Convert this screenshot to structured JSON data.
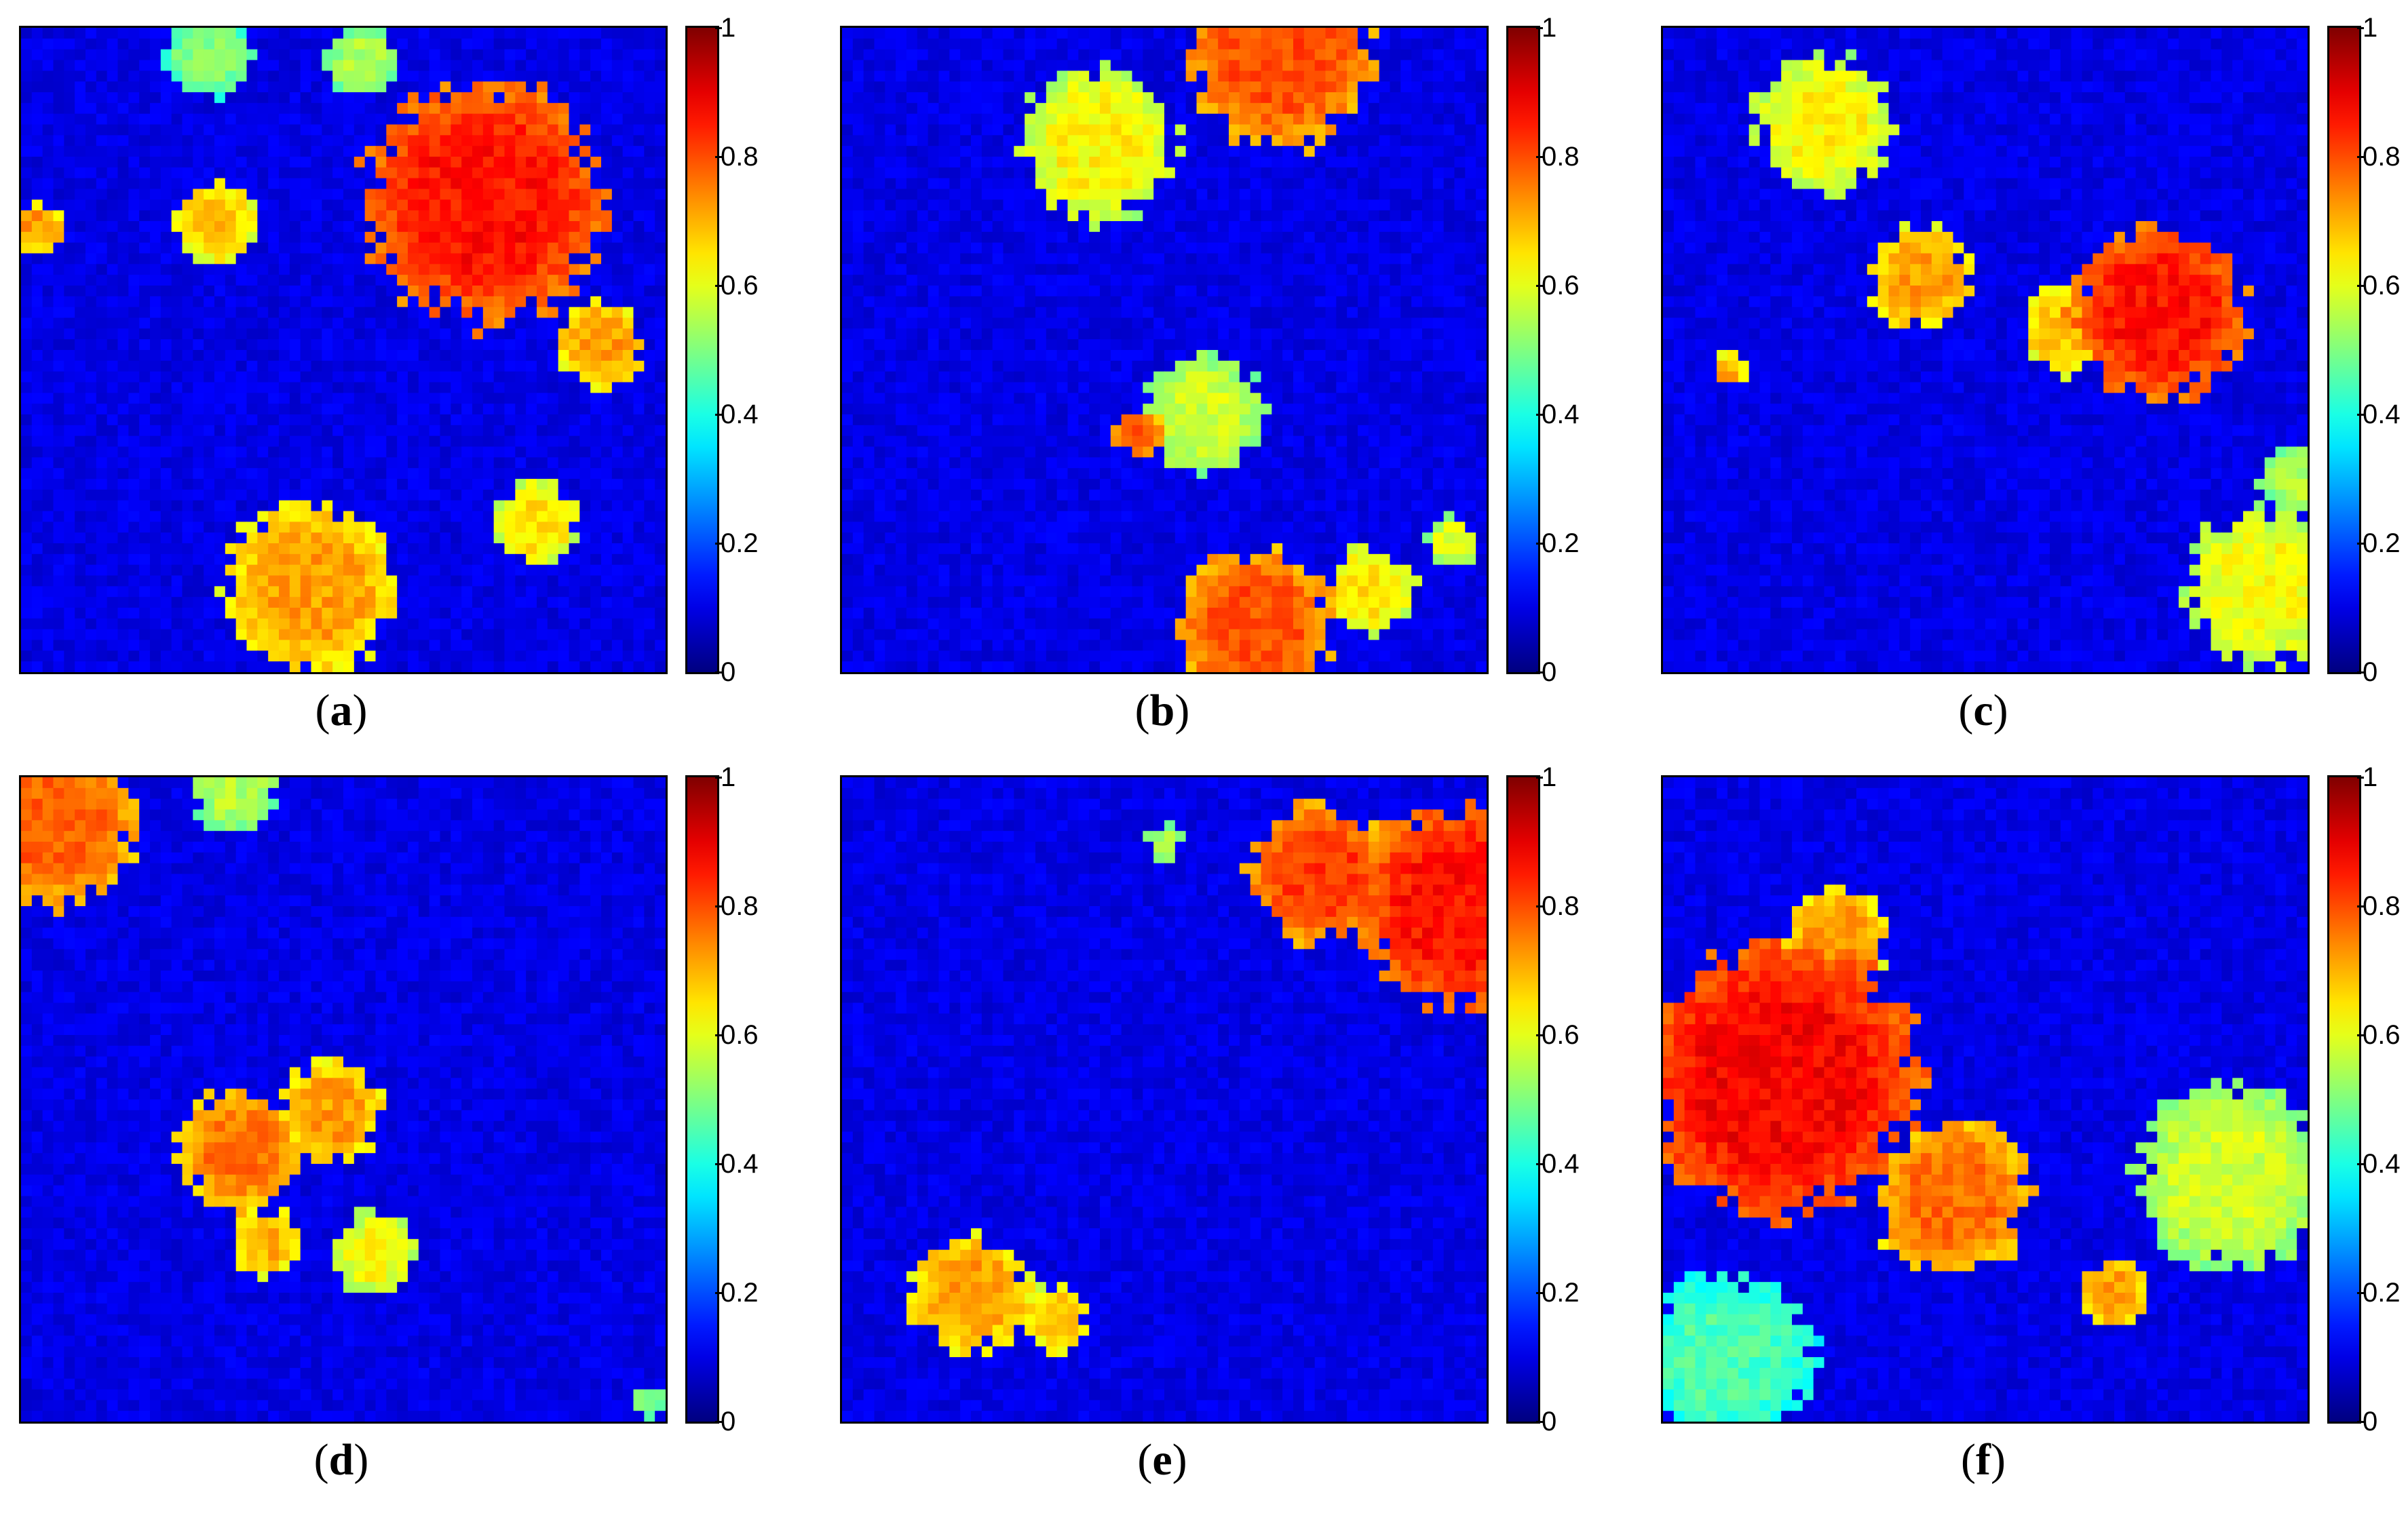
{
  "figure": {
    "colormap": "jet",
    "colorbar_ticks": [
      "0",
      "0.2",
      "0.4",
      "0.6",
      "0.8",
      "1"
    ],
    "panels": [
      {
        "label_open": "(",
        "label_letter": "a",
        "label_close": ")",
        "caption": "(a)"
      },
      {
        "label_open": "(",
        "label_letter": "b",
        "label_close": ")",
        "caption": "(b)"
      },
      {
        "label_open": "(",
        "label_letter": "c",
        "label_close": ")",
        "caption": "(c)"
      },
      {
        "label_open": "(",
        "label_letter": "d",
        "label_close": ")",
        "caption": "(d)"
      },
      {
        "label_open": "(",
        "label_letter": "e",
        "label_close": ")",
        "caption": "(e)"
      },
      {
        "label_open": "(",
        "label_letter": "f",
        "label_close": ")",
        "caption": "(f)"
      }
    ]
  },
  "chart_data": [
    {
      "type": "heatmap",
      "title": "(a)",
      "grid_size": [
        60,
        60
      ],
      "value_range": [
        0,
        1
      ],
      "colorbar_ticks": [
        0,
        0.2,
        0.4,
        0.6,
        0.8,
        1
      ],
      "background_value": 0.1,
      "blobs": [
        [
          0.72,
          0.27,
          0.14,
          0.86
        ],
        [
          0.45,
          0.87,
          0.1,
          0.72
        ],
        [
          0.3,
          0.3,
          0.05,
          0.68
        ],
        [
          0.9,
          0.49,
          0.05,
          0.72
        ],
        [
          0.8,
          0.77,
          0.05,
          0.65
        ],
        [
          0.03,
          0.31,
          0.03,
          0.72
        ],
        [
          0.29,
          0.04,
          0.05,
          0.5
        ],
        [
          0.53,
          0.05,
          0.04,
          0.55
        ]
      ]
    },
    {
      "type": "heatmap",
      "title": "(b)",
      "grid_size": [
        60,
        60
      ],
      "value_range": [
        0,
        1
      ],
      "colorbar_ticks": [
        0,
        0.2,
        0.4,
        0.6,
        0.8,
        1
      ],
      "background_value": 0.1,
      "blobs": [
        [
          0.68,
          0.04,
          0.11,
          0.8
        ],
        [
          0.4,
          0.18,
          0.09,
          0.63
        ],
        [
          0.56,
          0.6,
          0.07,
          0.58
        ],
        [
          0.64,
          0.93,
          0.09,
          0.8
        ],
        [
          0.46,
          0.63,
          0.03,
          0.78
        ],
        [
          0.82,
          0.87,
          0.05,
          0.65
        ],
        [
          0.95,
          0.8,
          0.03,
          0.6
        ]
      ]
    },
    {
      "type": "heatmap",
      "title": "(c)",
      "grid_size": [
        60,
        60
      ],
      "value_range": [
        0,
        1
      ],
      "colorbar_ticks": [
        0,
        0.2,
        0.4,
        0.6,
        0.8,
        1
      ],
      "background_value": 0.1,
      "blobs": [
        [
          0.77,
          0.44,
          0.1,
          0.86
        ],
        [
          0.4,
          0.39,
          0.06,
          0.72
        ],
        [
          0.25,
          0.15,
          0.08,
          0.63
        ],
        [
          0.62,
          0.47,
          0.05,
          0.68
        ],
        [
          0.93,
          0.87,
          0.09,
          0.62
        ],
        [
          0.98,
          0.7,
          0.04,
          0.55
        ],
        [
          0.1,
          0.53,
          0.02,
          0.7
        ]
      ]
    },
    {
      "type": "heatmap",
      "title": "(d)",
      "grid_size": [
        60,
        60
      ],
      "value_range": [
        0,
        1
      ],
      "colorbar_ticks": [
        0,
        0.2,
        0.4,
        0.6,
        0.8,
        1
      ],
      "background_value": 0.1,
      "blobs": [
        [
          0.05,
          0.07,
          0.1,
          0.78
        ],
        [
          0.34,
          0.58,
          0.07,
          0.76
        ],
        [
          0.48,
          0.52,
          0.06,
          0.72
        ],
        [
          0.55,
          0.74,
          0.05,
          0.62
        ],
        [
          0.38,
          0.72,
          0.04,
          0.7
        ],
        [
          0.33,
          0.02,
          0.05,
          0.55
        ],
        [
          0.97,
          0.97,
          0.02,
          0.5
        ]
      ]
    },
    {
      "type": "heatmap",
      "title": "(e)",
      "grid_size": [
        60,
        60
      ],
      "value_range": [
        0,
        1
      ],
      "colorbar_ticks": [
        0,
        0.2,
        0.4,
        0.6,
        0.8,
        1
      ],
      "background_value": 0.1,
      "blobs": [
        [
          0.96,
          0.2,
          0.12,
          0.86
        ],
        [
          0.74,
          0.15,
          0.08,
          0.82
        ],
        [
          0.2,
          0.8,
          0.07,
          0.72
        ],
        [
          0.33,
          0.84,
          0.04,
          0.68
        ],
        [
          0.5,
          0.1,
          0.02,
          0.55
        ]
      ]
    },
    {
      "type": "heatmap",
      "title": "(f)",
      "grid_size": [
        60,
        60
      ],
      "value_range": [
        0,
        1
      ],
      "colorbar_ticks": [
        0,
        0.2,
        0.4,
        0.6,
        0.8,
        1
      ],
      "background_value": 0.1,
      "blobs": [
        [
          0.18,
          0.47,
          0.16,
          0.88
        ],
        [
          0.45,
          0.65,
          0.09,
          0.77
        ],
        [
          0.88,
          0.62,
          0.11,
          0.58
        ],
        [
          0.1,
          0.9,
          0.1,
          0.45
        ],
        [
          0.27,
          0.25,
          0.06,
          0.72
        ],
        [
          0.7,
          0.8,
          0.04,
          0.72
        ]
      ]
    }
  ]
}
